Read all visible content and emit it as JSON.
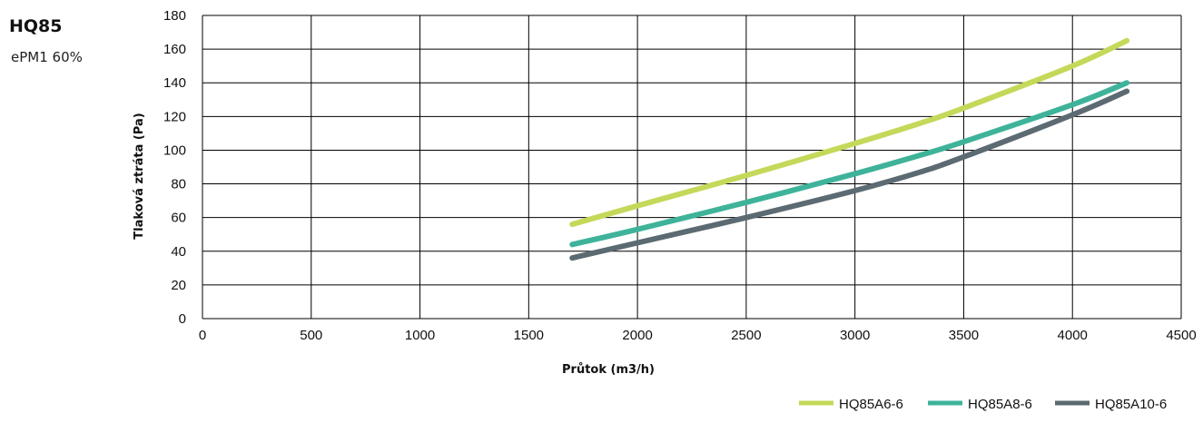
{
  "header": {
    "title": "HQ85",
    "subtitle": "ePM1 60%"
  },
  "chart_data": {
    "type": "line",
    "xlabel": "Průtok (m3/h)",
    "ylabel": "Tlaková ztráta (Pa)",
    "xlim": [
      0,
      4500
    ],
    "ylim": [
      0,
      180
    ],
    "xticks": [
      0,
      500,
      1000,
      1500,
      2000,
      2500,
      3000,
      3500,
      4000,
      4500
    ],
    "yticks": [
      0,
      20,
      40,
      60,
      80,
      100,
      120,
      140,
      160,
      180
    ],
    "grid": true,
    "legend_position": "bottom-right",
    "series": [
      {
        "name": "HQ85A6-6",
        "color": "#c5d85a",
        "x": [
          1700,
          2000,
          2500,
          3000,
          3300,
          3500,
          4000,
          4250
        ],
        "y": [
          56,
          67,
          85,
          104,
          116,
          125,
          150,
          165
        ]
      },
      {
        "name": "HQ85A8-6",
        "color": "#3fb39a",
        "x": [
          1700,
          2000,
          2500,
          3000,
          3300,
          3500,
          4000,
          4250
        ],
        "y": [
          44,
          53,
          69,
          86,
          97,
          105,
          127,
          140
        ]
      },
      {
        "name": "HQ85A10-6",
        "color": "#5c6a72",
        "x": [
          1700,
          2000,
          2500,
          3000,
          3300,
          3500,
          4000,
          4250
        ],
        "y": [
          36,
          45,
          60,
          76,
          87,
          96,
          121,
          135
        ]
      }
    ]
  }
}
